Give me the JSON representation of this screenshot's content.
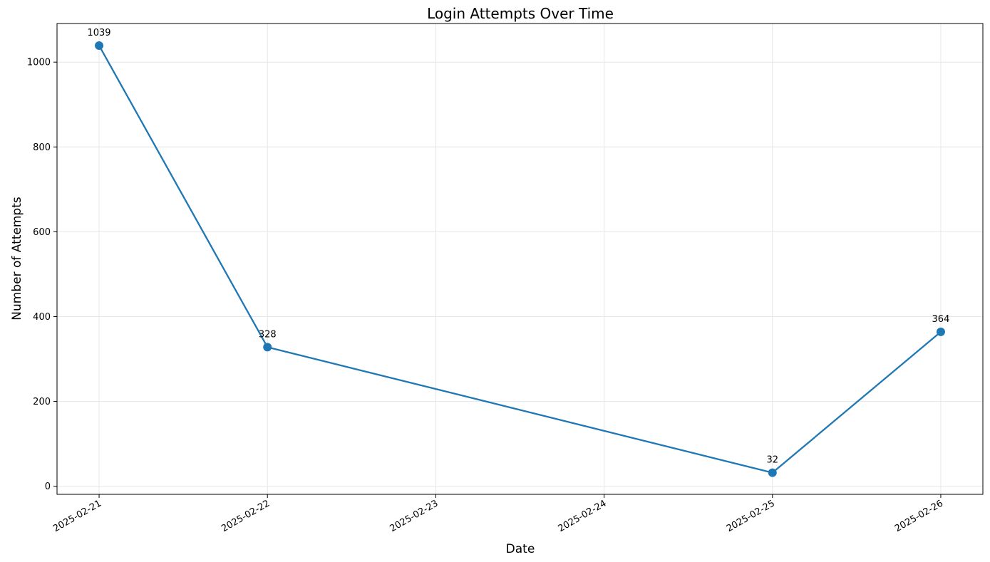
{
  "chart_data": {
    "type": "line",
    "title": "Login Attempts Over Time",
    "xlabel": "Date",
    "ylabel": "Number of Attempts",
    "x_ticks": [
      "2025-02-21",
      "2025-02-22",
      "2025-02-23",
      "2025-02-24",
      "2025-02-25",
      "2025-02-26"
    ],
    "y_ticks": [
      0,
      200,
      400,
      600,
      800,
      1000
    ],
    "xlim": [
      "2025-02-20.75",
      "2025-02-26.25"
    ],
    "ylim": [
      -19,
      1091
    ],
    "grid": true,
    "legend": "none",
    "colors": {
      "line": "#1f77b4",
      "grid": "#e6e6e6"
    },
    "series": [
      {
        "x": [
          "2025-02-21",
          "2025-02-22",
          "2025-02-25",
          "2025-02-26"
        ],
        "values": [
          1039,
          328,
          32,
          364
        ],
        "labels": [
          "1039",
          "328",
          "32",
          "364"
        ]
      }
    ]
  }
}
